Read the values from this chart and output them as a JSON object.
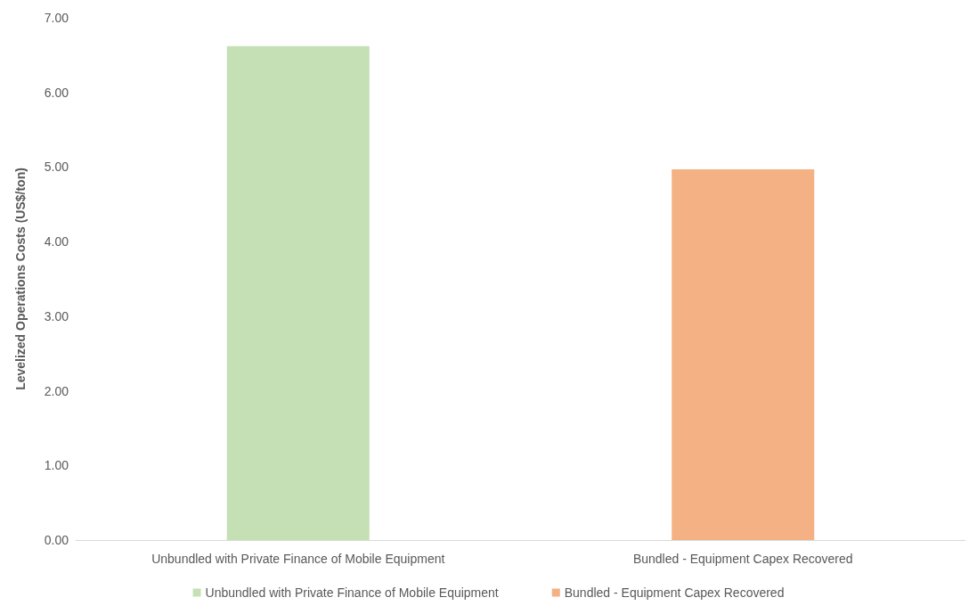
{
  "chart_data": {
    "type": "bar",
    "ylabel": "Levelized Operations Costs (US$/ton)",
    "categories": [
      "Unbundled with Private Finance of Mobile Equipment",
      "Bundled - Equipment Capex Recovered"
    ],
    "series": [
      {
        "name": "Unbundled with Private Finance of Mobile Equipment",
        "color": "#c5e0b4",
        "values": [
          6.62,
          null
        ]
      },
      {
        "name": "Bundled - Equipment Capex Recovered",
        "color": "#f4b183",
        "values": [
          null,
          4.97
        ]
      }
    ],
    "ylim": [
      0,
      7
    ],
    "yticks": [
      {
        "value": 0,
        "label": "0.00"
      },
      {
        "value": 1,
        "label": "1.00"
      },
      {
        "value": 2,
        "label": "2.00"
      },
      {
        "value": 3,
        "label": "3.00"
      },
      {
        "value": 4,
        "label": "4.00"
      },
      {
        "value": 5,
        "label": "5.00"
      },
      {
        "value": 6,
        "label": "6.00"
      },
      {
        "value": 7,
        "label": "7.00"
      }
    ],
    "grid": false,
    "legend": "bottom"
  }
}
